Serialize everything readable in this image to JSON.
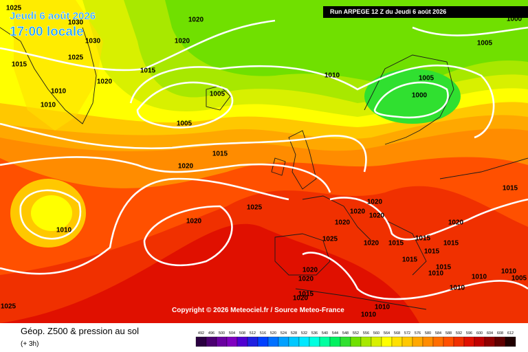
{
  "header": {
    "date": "Jeudi 6 août 2026",
    "time": "17:00 locale",
    "run": "Run ARPEGE 12 Z du Jeudi 6 août 2026"
  },
  "copyright": "Copyright © 2026 Meteociel.fr / Source Meteo-France",
  "footer": {
    "title": "Géop. Z500 & pression au sol",
    "subtitle": "(+ 3h)"
  },
  "isobar_labels": [
    1025,
    1030,
    1030,
    1025,
    1015,
    1020,
    1020,
    1015,
    1020,
    1010,
    1010,
    1005,
    1005,
    1010,
    1005,
    1005,
    1000,
    1015,
    1020,
    1025,
    1020,
    1010,
    1020,
    1020,
    1020,
    1020,
    1025,
    1020,
    1015,
    1015,
    1020,
    1015,
    1015,
    1015,
    1015,
    1010,
    1015,
    1020,
    1020,
    1010,
    1010,
    1005,
    1010,
    1020,
    1015,
    1010,
    1010,
    1025,
    1000
  ],
  "legend": {
    "values": [
      492,
      496,
      500,
      504,
      508,
      512,
      516,
      520,
      524,
      528,
      532,
      536,
      540,
      544,
      548,
      552,
      556,
      560,
      564,
      568,
      572,
      576,
      580,
      584,
      588,
      592,
      596,
      600,
      604,
      608,
      612
    ],
    "colors": [
      "#2a0040",
      "#4b0070",
      "#6a00a0",
      "#8000c0",
      "#5000d0",
      "#2020e0",
      "#0040ff",
      "#0070ff",
      "#00a0ff",
      "#00c8ff",
      "#00e8ff",
      "#00ffe0",
      "#00ffa0",
      "#00f060",
      "#30e030",
      "#70e000",
      "#a8e800",
      "#d8f000",
      "#ffff00",
      "#ffe000",
      "#ffc800",
      "#ffa800",
      "#ff8c00",
      "#ff6e00",
      "#ff5000",
      "#f03000",
      "#e01000",
      "#c00000",
      "#900000",
      "#600000",
      "#200000"
    ]
  }
}
